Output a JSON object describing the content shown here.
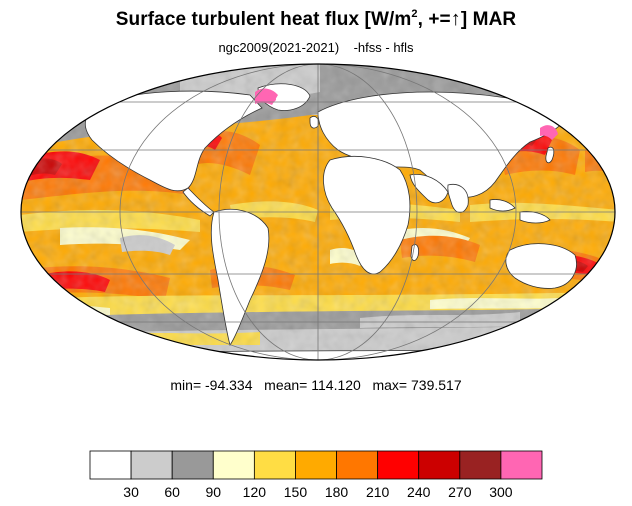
{
  "title": {
    "main": "Surface turbulent heat flux [W/m",
    "superscript": "2",
    "middle": ", +=",
    "arrow": "↑",
    "end": "]  MAR"
  },
  "subtitle": "ngc2009(2021-2021)    -hfss - hfls",
  "stats": "min= -94.334   mean= 114.120   max= 739.517",
  "colorbar": {
    "levels": [
      "30",
      "60",
      "90",
      "120",
      "150",
      "180",
      "210",
      "240",
      "270",
      "300"
    ],
    "colors": [
      "#ffffff",
      "#cccccc",
      "#999999",
      "#ffffcc",
      "#ffdd44",
      "#ffaa00",
      "#ff7700",
      "#ff0000",
      "#cc0000",
      "#992222",
      "#ff66b3"
    ]
  },
  "map": {
    "projection": "Mollweide",
    "land_color": "#ffffff",
    "grid_color": "#777777"
  }
}
